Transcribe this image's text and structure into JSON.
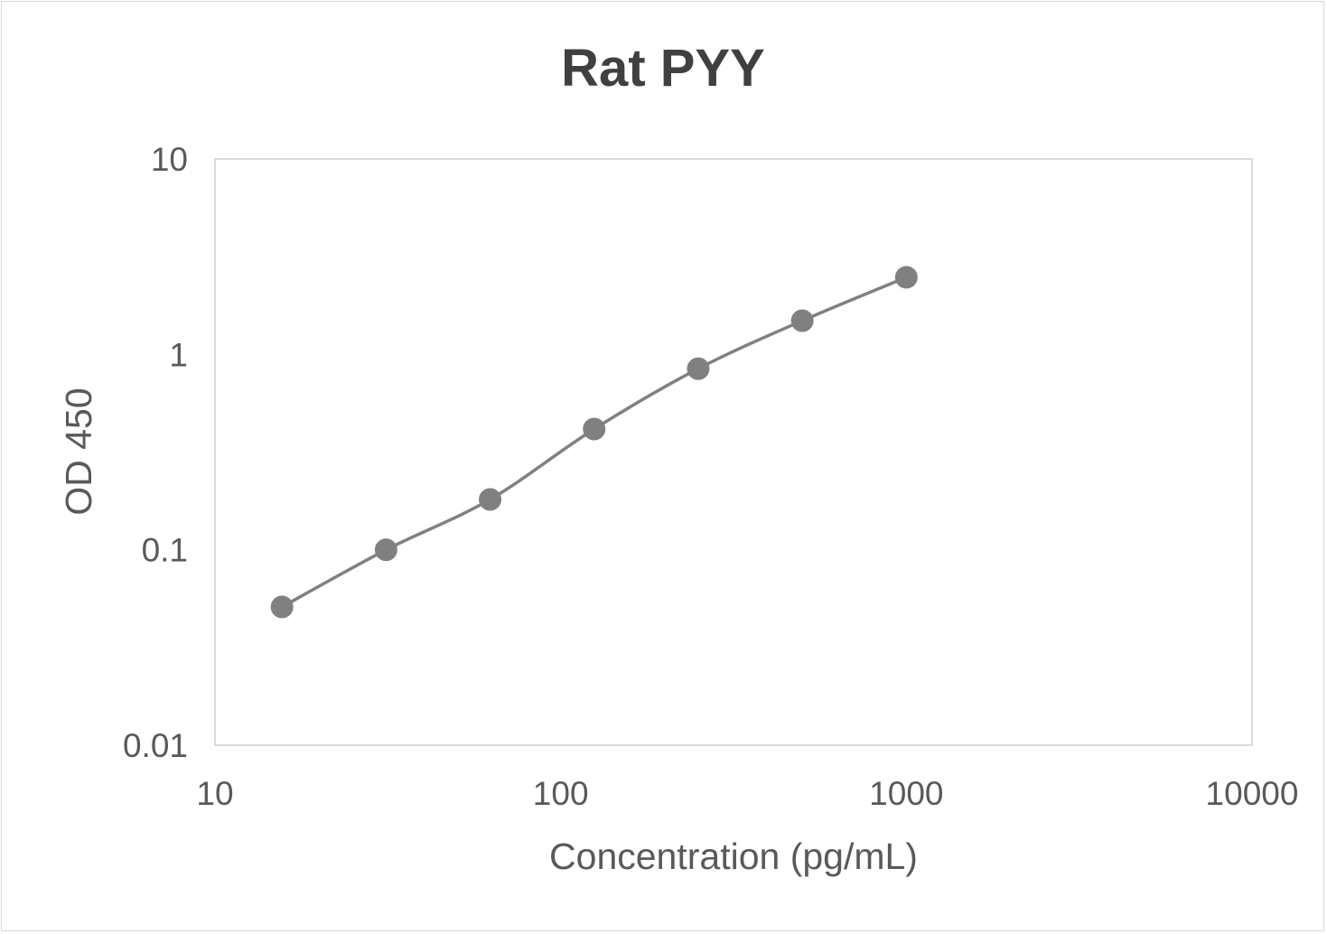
{
  "chart_data": {
    "type": "line",
    "title": "Rat PYY",
    "xlabel": "Concentration (pg/mL)",
    "ylabel": "OD 450",
    "x_scale": "log",
    "y_scale": "log",
    "xlim": [
      10,
      10000
    ],
    "ylim": [
      0.01,
      10
    ],
    "x_ticks": [
      "10",
      "100",
      "1000",
      "10000"
    ],
    "y_ticks": [
      "0.01",
      "0.1",
      "1",
      "10"
    ],
    "grid": false,
    "legend": "none",
    "smoothed": true,
    "series": [
      {
        "color": "#808080",
        "x": [
          15.625,
          31.25,
          62.5,
          125,
          250,
          500,
          1000
        ],
        "y": [
          0.051,
          0.1,
          0.181,
          0.415,
          0.845,
          1.487,
          2.48
        ]
      }
    ]
  }
}
